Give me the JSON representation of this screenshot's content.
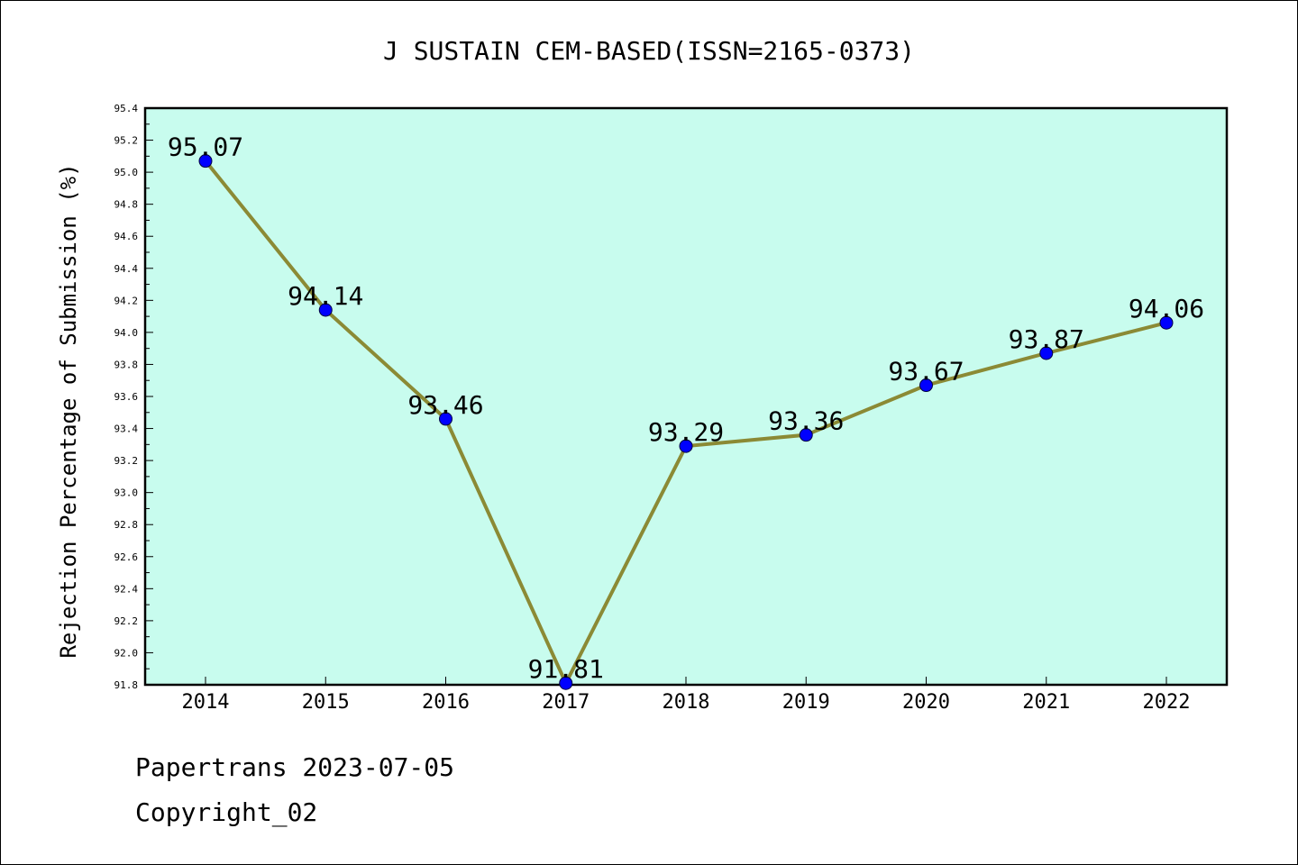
{
  "chart_data": {
    "type": "line",
    "title": "J SUSTAIN CEM-BASED(ISSN=2165-0373)",
    "xlabel": "",
    "ylabel": "Rejection Percentage of Submission (%)",
    "categories": [
      "2014",
      "2015",
      "2016",
      "2017",
      "2018",
      "2019",
      "2020",
      "2021",
      "2022"
    ],
    "values": [
      95.07,
      94.14,
      93.46,
      91.81,
      93.29,
      93.36,
      93.67,
      93.87,
      94.06
    ],
    "data_labels": [
      "95.07",
      "94.14",
      "93.46",
      "91.81",
      "93.29",
      "93.36",
      "93.67",
      "93.87",
      "94.06"
    ],
    "ylim": [
      91.8,
      95.4
    ],
    "yticks": [
      "91.8",
      "92.0",
      "92.2",
      "92.4",
      "92.6",
      "92.8",
      "93.0",
      "93.2",
      "93.4",
      "93.6",
      "93.8",
      "94.0",
      "94.2",
      "94.4",
      "94.6",
      "94.8",
      "95.0",
      "95.2",
      "95.4"
    ],
    "grid": false,
    "colors": {
      "plot_background": "#c8fcee",
      "line": "#8b8a35",
      "marker": "#0000ff"
    }
  },
  "footer": {
    "line1": "Papertrans 2023-07-05",
    "line2": "Copyright_02"
  }
}
